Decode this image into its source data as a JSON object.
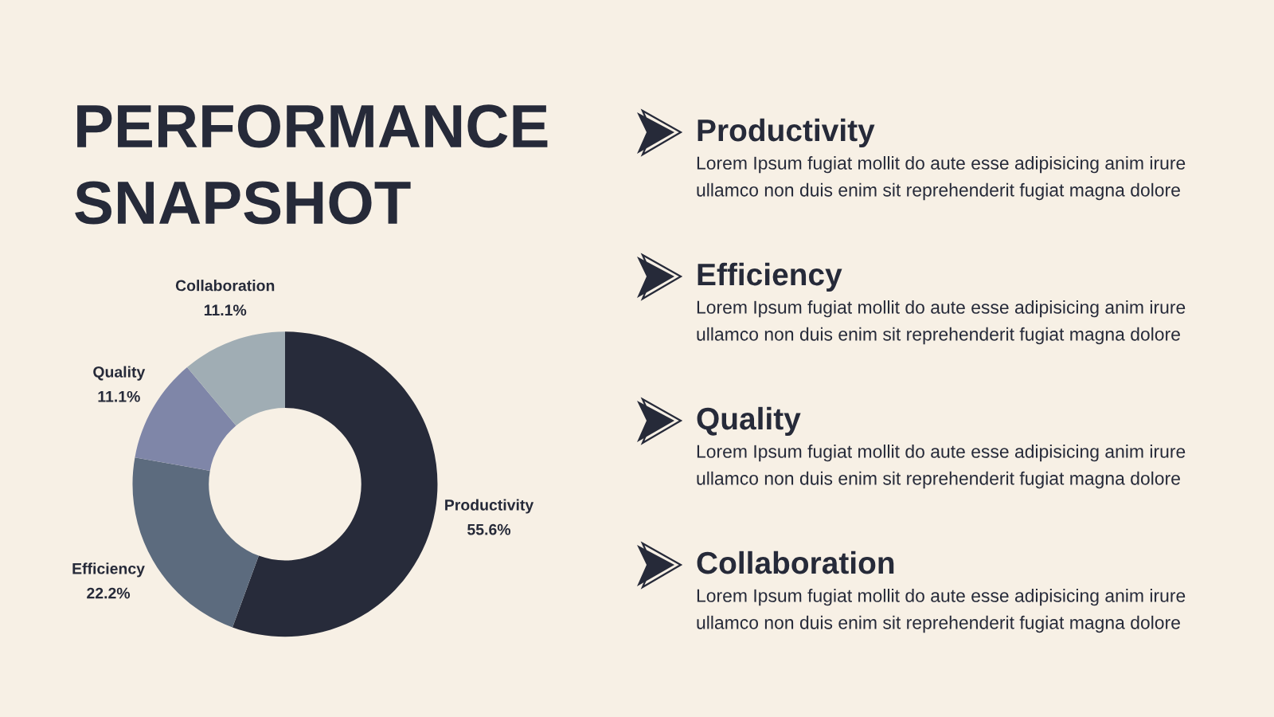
{
  "chart_data": [
    {
      "type": "donut",
      "title": "PERFORMANCE\nSNAPSHOT",
      "categories": [
        "Productivity",
        "Efficiency",
        "Quality",
        "Collaboration"
      ],
      "values": [
        55.6,
        22.2,
        11.1,
        11.1
      ],
      "colors": [
        "#272b3a",
        "#5c6b7e",
        "#7f86a8",
        "#a0adb4"
      ],
      "value_labels": [
        "55.6%",
        "22.2%",
        "11.1%",
        "11.1%"
      ]
    },
    {
      "type": "other",
      "annotations": [
        "Productivity",
        "Lorem Ipsum fugiat mollit do aute esse adipisicing anim irure\nullamco non duis enim sit reprehenderit fugiat magna dolore",
        "Efficiency",
        "Lorem Ipsum fugiat mollit do aute esse adipisicing anim irure\nullamco non duis enim sit reprehenderit fugiat magna dolore",
        "Quality",
        "Lorem Ipsum fugiat mollit do aute esse adipisicing anim irure\nullamco non duis enim sit reprehenderit fugiat magna dolore",
        "Collaboration",
        "Lorem Ipsum fugiat mollit do aute esse adipisicing anim irure\nullamco non duis enim sit reprehenderit fugiat magna dolore"
      ]
    }
  ]
}
